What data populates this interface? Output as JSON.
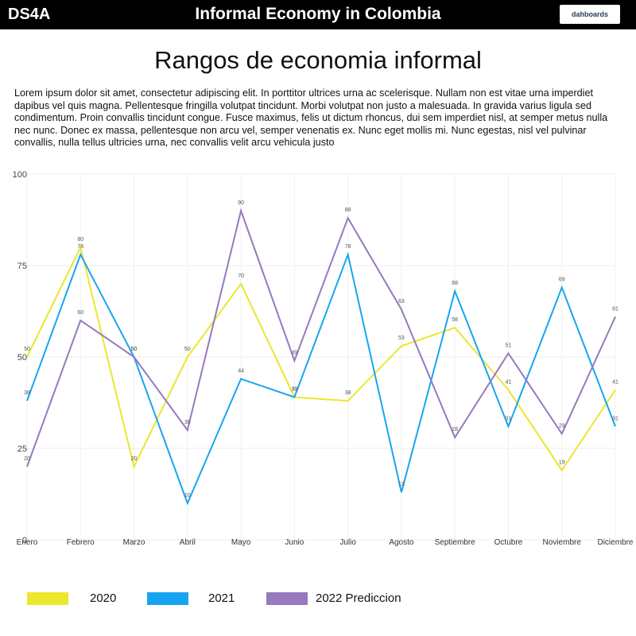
{
  "header": {
    "brand": "DS4A",
    "title": "Informal Economy in Colombia",
    "button_label": "dahboards"
  },
  "page": {
    "title": "Rangos de economia informal",
    "intro": "Lorem ipsum dolor sit amet, consectetur adipiscing elit. In porttitor ultrices urna ac scelerisque. Nullam non est vitae urna imperdiet dapibus vel quis magna. Pellentesque fringilla volutpat tincidunt. Morbi volutpat non justo a malesuada. In gravida varius ligula sed condimentum. Proin convallis tincidunt congue. Fusce maximus, felis ut dictum rhoncus, dui sem imperdiet nisl, at semper metus nulla nec nunc. Donec ex massa, pellentesque non arcu vel, semper venenatis ex. Nunc eget mollis mi. Nunc egestas, nisl vel pulvinar convallis, nulla tellus ultricies urna, nec convallis velit arcu vehicula justo"
  },
  "chart_data": {
    "type": "line",
    "categories": [
      "Enero",
      "Febrero",
      "Marzo",
      "Abril",
      "Mayo",
      "Junio",
      "Julio",
      "Agosto",
      "Septiembre",
      "Octubre",
      "Noviembre",
      "Diciembre"
    ],
    "ylim": [
      0,
      100
    ],
    "yticks": [
      0,
      25,
      50,
      75,
      100
    ],
    "grid": true,
    "legend_position": "bottom",
    "series": [
      {
        "name": "2020",
        "color": "#ece62d",
        "values": [
          50,
          80,
          20,
          50,
          70,
          39,
          38,
          53,
          58,
          41,
          19,
          41
        ]
      },
      {
        "name": "2021",
        "color": "#17a5f2",
        "values": [
          38,
          78,
          50,
          10,
          44,
          39,
          78,
          13,
          68,
          31,
          69,
          31
        ]
      },
      {
        "name": "2022 Prediccion",
        "color": "#9779bd",
        "values": [
          20,
          60,
          50,
          30,
          90,
          49,
          88,
          63,
          28,
          51,
          29,
          61
        ]
      }
    ]
  }
}
